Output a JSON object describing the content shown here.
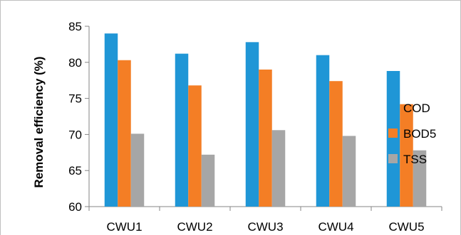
{
  "chart_data": {
    "type": "bar",
    "title": "",
    "xlabel": "",
    "ylabel": "Removal efficiency (%)",
    "ylim": [
      60,
      85
    ],
    "yticks": [
      60,
      65,
      70,
      75,
      80,
      85
    ],
    "categories": [
      "CWU1",
      "CWU2",
      "CWU3",
      "CWU4",
      "CWU5"
    ],
    "series": [
      {
        "name": "COD",
        "color": "#1f96d6",
        "values": [
          84.0,
          81.2,
          82.8,
          81.0,
          78.8
        ]
      },
      {
        "name": "BOD5",
        "color": "#f47e25",
        "values": [
          80.3,
          76.8,
          79.0,
          77.4,
          74.2
        ]
      },
      {
        "name": "TSS",
        "color": "#a6a6a6",
        "values": [
          70.1,
          67.2,
          70.6,
          69.8,
          67.8
        ]
      }
    ],
    "grid": false,
    "legend_position": "right"
  }
}
